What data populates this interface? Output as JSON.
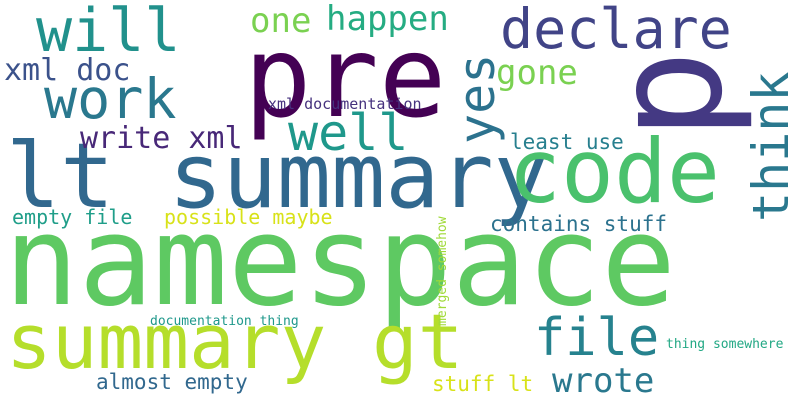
{
  "words": [
    {
      "text": "namespace",
      "color": "#5ec962"
    },
    {
      "text": "p",
      "color": "#443983"
    },
    {
      "text": "pre",
      "color": "#440154"
    },
    {
      "text": "lt summary",
      "color": "#31688e"
    },
    {
      "text": "code",
      "color": "#4ac16d"
    },
    {
      "text": "summary gt",
      "color": "#b5de2b"
    },
    {
      "text": "will",
      "color": "#21918c"
    },
    {
      "text": "declare",
      "color": "#414487"
    },
    {
      "text": "work",
      "color": "#2a788e"
    },
    {
      "text": "think",
      "color": "#2a788e"
    },
    {
      "text": "well",
      "color": "#1f988b"
    },
    {
      "text": "yes",
      "color": "#2c728e"
    },
    {
      "text": "file",
      "color": "#26828e"
    },
    {
      "text": "one",
      "color": "#7ad151"
    },
    {
      "text": "happen",
      "color": "#25ac82"
    },
    {
      "text": "gone",
      "color": "#7ad151"
    },
    {
      "text": "xml doc",
      "color": "#3b528b"
    },
    {
      "text": "write xml",
      "color": "#482878"
    },
    {
      "text": "wrote",
      "color": "#2a788e"
    },
    {
      "text": "possible maybe",
      "color": "#d8e219"
    },
    {
      "text": "empty file",
      "color": "#1f9e89"
    },
    {
      "text": "contains stuff",
      "color": "#2c728e"
    },
    {
      "text": "least use",
      "color": "#277f8e"
    },
    {
      "text": "almost empty",
      "color": "#31688e"
    },
    {
      "text": "stuff lt",
      "color": "#d8e219"
    },
    {
      "text": "xml documentation",
      "color": "#46327e"
    },
    {
      "text": "documentation thing",
      "color": "#1f988b"
    },
    {
      "text": "merged somehow",
      "color": "#a0da39"
    },
    {
      "text": "thing somewhere",
      "color": "#22a884"
    }
  ]
}
